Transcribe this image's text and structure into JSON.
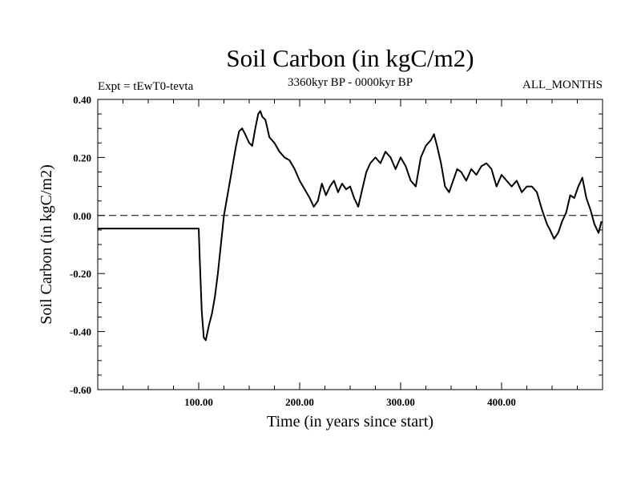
{
  "chart_data": {
    "type": "line",
    "title": "Soil Carbon (in kgC/m2)",
    "subtitle": "3360kyr BP - 0000kyr BP",
    "experiment": "Expt = tEwT0-tevta",
    "months": "ALL_MONTHS",
    "xlabel": "Time (in years since start)",
    "ylabel": "Soil Carbon (in kgC/m2)",
    "xlim": [
      0,
      500
    ],
    "ylim": [
      -0.6,
      0.4
    ],
    "x_ticks": [
      100,
      200,
      300,
      400
    ],
    "x_tick_labels": [
      "100.00",
      "200.00",
      "300.00",
      "400.00"
    ],
    "y_ticks": [
      -0.6,
      -0.4,
      -0.2,
      0.0,
      0.2,
      0.4
    ],
    "y_tick_labels": [
      "-0.60",
      "-0.40",
      "-0.20",
      "0.00",
      "0.20",
      "0.40"
    ],
    "reference_line": {
      "y": 0.0,
      "style": "dashed"
    },
    "series": [
      {
        "name": "Soil Carbon",
        "x": [
          0,
          100,
          101,
          103,
          105,
          107,
          110,
          113,
          116,
          119,
          122,
          125,
          128,
          131,
          134,
          137,
          140,
          143,
          146,
          150,
          153,
          156,
          159,
          161,
          163,
          166,
          170,
          175,
          180,
          185,
          190,
          195,
          200,
          205,
          210,
          214,
          218,
          222,
          226,
          230,
          234,
          238,
          242,
          246,
          250,
          254,
          258,
          262,
          266,
          270,
          275,
          280,
          285,
          290,
          295,
          300,
          305,
          310,
          315,
          320,
          325,
          330,
          333,
          336,
          340,
          344,
          348,
          352,
          356,
          360,
          365,
          370,
          375,
          380,
          385,
          390,
          395,
          400,
          405,
          410,
          415,
          420,
          425,
          430,
          435,
          440,
          445,
          448,
          452,
          456,
          460,
          464,
          468,
          472,
          476,
          480,
          484,
          488,
          492,
          496,
          499
        ],
        "values": [
          -0.045,
          -0.045,
          -0.15,
          -0.33,
          -0.42,
          -0.43,
          -0.38,
          -0.34,
          -0.28,
          -0.2,
          -0.1,
          0.0,
          0.06,
          0.12,
          0.18,
          0.24,
          0.29,
          0.3,
          0.28,
          0.25,
          0.24,
          0.3,
          0.35,
          0.36,
          0.34,
          0.33,
          0.27,
          0.25,
          0.22,
          0.2,
          0.19,
          0.16,
          0.12,
          0.09,
          0.06,
          0.03,
          0.05,
          0.11,
          0.07,
          0.1,
          0.12,
          0.08,
          0.11,
          0.09,
          0.1,
          0.06,
          0.03,
          0.09,
          0.15,
          0.18,
          0.2,
          0.18,
          0.22,
          0.2,
          0.16,
          0.2,
          0.17,
          0.12,
          0.1,
          0.2,
          0.24,
          0.26,
          0.28,
          0.24,
          0.18,
          0.1,
          0.08,
          0.12,
          0.16,
          0.15,
          0.12,
          0.16,
          0.14,
          0.17,
          0.18,
          0.16,
          0.1,
          0.14,
          0.12,
          0.1,
          0.12,
          0.08,
          0.1,
          0.1,
          0.08,
          0.02,
          -0.03,
          -0.05,
          -0.08,
          -0.06,
          -0.02,
          0.01,
          0.07,
          0.06,
          0.1,
          0.13,
          0.06,
          0.02,
          -0.03,
          -0.06,
          -0.02
        ]
      }
    ]
  }
}
